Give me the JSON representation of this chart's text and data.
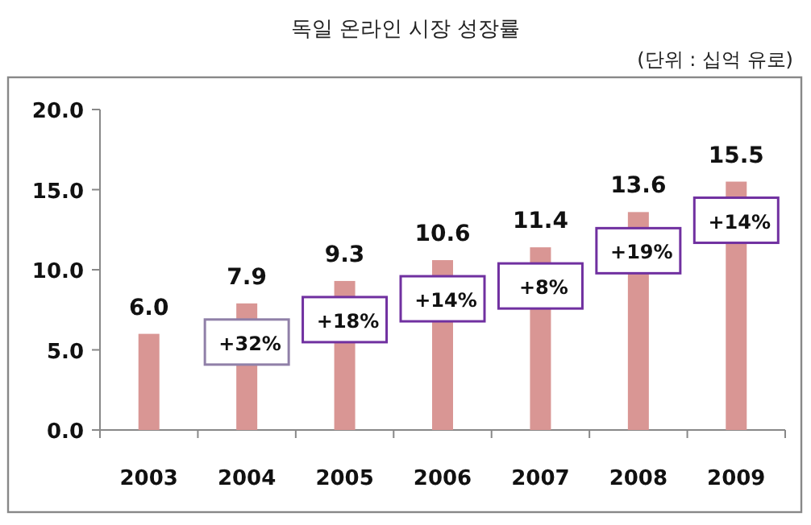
{
  "chart_data": {
    "type": "bar",
    "title": "독일 온라인 시장 성장률",
    "subtitle": "(단위 : 십억 유로)",
    "categories": [
      "2003",
      "2004",
      "2005",
      "2006",
      "2007",
      "2008",
      "2009"
    ],
    "values": [
      6.0,
      7.9,
      9.3,
      10.6,
      11.4,
      13.6,
      15.5
    ],
    "color": "#d99694",
    "value_labels": [
      "6.0",
      "7.9",
      "9.3",
      "10.6",
      "11.4",
      "13.6",
      "15.5"
    ],
    "ylim": [
      0,
      20
    ],
    "yticks": [
      {
        "value": 0,
        "label": "0.0"
      },
      {
        "value": 5,
        "label": "5.0"
      },
      {
        "value": 10,
        "label": "10.0"
      },
      {
        "value": 15,
        "label": "15.0"
      },
      {
        "value": 20,
        "label": "20.0"
      }
    ],
    "grid": false,
    "annotations": [
      "+32%",
      "+18%",
      "+14%",
      "+8%",
      "+19%",
      "+14%"
    ]
  }
}
